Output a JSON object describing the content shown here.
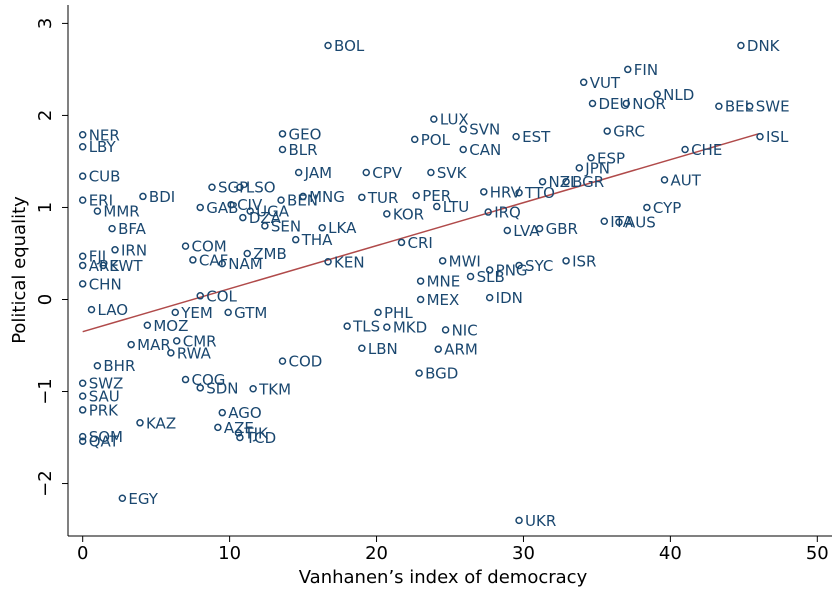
{
  "chart_data": {
    "type": "scatter",
    "x_label": "Vanhanen’s index of democracy",
    "y_label": "Political equality",
    "xlim": [
      -1,
      51
    ],
    "ylim": [
      -2.57,
      3.2
    ],
    "xticks": [
      0,
      10,
      20,
      30,
      40,
      50
    ],
    "yticks": [
      {
        "value": -2,
        "label": "−2"
      },
      {
        "value": -1,
        "label": "−1"
      },
      0,
      1,
      2,
      3
    ],
    "series": [
      {
        "color": "#1a476f",
        "labels": [
          "DNK",
          "BOL",
          "FIN",
          "VUT",
          "NLD",
          "DEU",
          "NOR",
          "BEL",
          "SWE",
          "LUX",
          "SVN",
          "EST",
          "POL",
          "GRC",
          "ISL",
          "NER",
          "LBY",
          "GEO",
          "BLR",
          "CAN",
          "CHE",
          "JPN",
          "ESP",
          "CUB",
          "JAM",
          "CPV",
          "AUT",
          "BGR",
          "NZL",
          "SVK",
          "ERI",
          "BDI",
          "SGP",
          "LSO",
          "PER",
          "TUR",
          "BEN",
          "MNG",
          "HRV",
          "TTO",
          "CYP",
          "LTU",
          "IRQ",
          "MMR",
          "GAB",
          "CIV",
          "UGA",
          "DZA",
          "KOR",
          "SEN",
          "LKA",
          "BFA",
          "ITA",
          "AUS",
          "GBR",
          "LVA",
          "COM",
          "IRN",
          "CRI",
          "ZMB",
          "THA",
          "FJI",
          "ARE",
          "KWT",
          "CAF",
          "NAM",
          "KEN",
          "PHL",
          "ISR",
          "SYC",
          "PNG",
          "SLB",
          "MNE",
          "MWI",
          "CHN",
          "IDN",
          "COL",
          "LAO",
          "GTM",
          "MEX",
          "YEM",
          "TLS",
          "MKD",
          "NIC",
          "MAR",
          "CMR",
          "MOZ",
          "RWA",
          "BHR",
          "LBN",
          "ARM",
          "COD",
          "BGD",
          "SWZ",
          "SAU",
          "PRK",
          "COG",
          "SDN",
          "TKM",
          "AGO",
          "KAZ",
          "AZE",
          "TJK",
          "TCD",
          "SOM",
          "QAT",
          "EGY",
          "UKR"
        ],
        "x": [
          44.8,
          16.7,
          37.1,
          34.1,
          39.1,
          34.7,
          37.0,
          43.3,
          45.4,
          23.9,
          25.9,
          29.5,
          22.6,
          35.7,
          46.1,
          0,
          0,
          13.6,
          13.6,
          25.9,
          41.0,
          33.8,
          34.6,
          0,
          14.7,
          19.3,
          39.6,
          32.9,
          31.3,
          23.7,
          0,
          4.1,
          8.8,
          10.7,
          22.7,
          19.0,
          13.5,
          15.0,
          27.3,
          29.7,
          38.4,
          24.1,
          27.6,
          1.0,
          8.0,
          10.1,
          11.4,
          10.9,
          20.7,
          12.4,
          16.3,
          2.0,
          35.5,
          36.5,
          31.1,
          28.9,
          7.0,
          2.2,
          21.7,
          11.2,
          14.5,
          0,
          0,
          1.4,
          7.5,
          9.5,
          16.7,
          20.1,
          32.9,
          29.7,
          27.7,
          26.4,
          23.0,
          24.5,
          0,
          27.7,
          8.0,
          0.6,
          9.9,
          23.0,
          6.3,
          18.0,
          20.7,
          24.7,
          3.3,
          6.4,
          4.4,
          6.0,
          1.0,
          19.0,
          24.2,
          13.6,
          22.9,
          0,
          0,
          0,
          7.0,
          8.0,
          11.6,
          9.5,
          3.9,
          9.2,
          10.6,
          10.7,
          0,
          0,
          2.7,
          29.7
        ],
        "y": [
          2.76,
          2.76,
          2.5,
          2.36,
          2.23,
          2.13,
          2.13,
          2.1,
          2.1,
          1.96,
          1.85,
          1.77,
          1.74,
          1.83,
          1.77,
          1.79,
          1.66,
          1.8,
          1.63,
          1.63,
          1.63,
          1.43,
          1.54,
          1.34,
          1.38,
          1.38,
          1.3,
          1.28,
          1.28,
          1.38,
          1.08,
          1.12,
          1.22,
          1.22,
          1.13,
          1.11,
          1.08,
          1.12,
          1.17,
          1.16,
          1.0,
          1.01,
          0.95,
          0.96,
          1.0,
          1.03,
          0.96,
          0.89,
          0.93,
          0.8,
          0.78,
          0.77,
          0.85,
          0.84,
          0.77,
          0.75,
          0.58,
          0.54,
          0.62,
          0.5,
          0.65,
          0.47,
          0.37,
          0.37,
          0.43,
          0.39,
          0.41,
          -0.14,
          0.42,
          0.37,
          0.32,
          0.25,
          0.2,
          0.42,
          0.17,
          0.02,
          0.04,
          -0.11,
          -0.14,
          0.0,
          -0.14,
          -0.29,
          -0.3,
          -0.33,
          -0.49,
          -0.45,
          -0.28,
          -0.58,
          -0.72,
          -0.53,
          -0.54,
          -0.67,
          -0.8,
          -0.91,
          -1.05,
          -1.2,
          -0.87,
          -0.96,
          -0.97,
          -1.23,
          -1.34,
          -1.39,
          -1.45,
          -1.5,
          -1.49,
          -1.54,
          -2.16,
          -2.4
        ]
      }
    ],
    "fit_line": {
      "color": "#b04a4a",
      "x": [
        0,
        46
      ],
      "y": [
        -0.35,
        1.8
      ]
    }
  }
}
